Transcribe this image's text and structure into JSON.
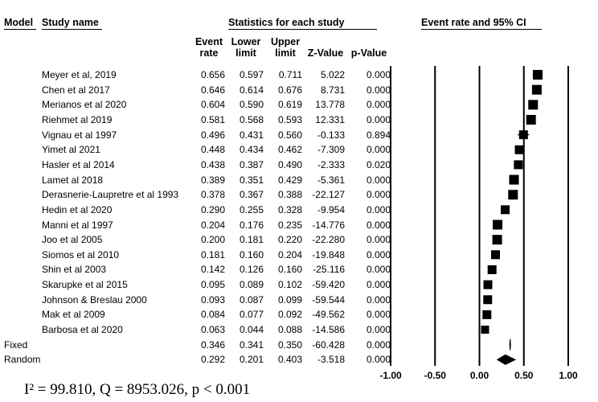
{
  "headers": {
    "model": "Model",
    "study_name": "Study name",
    "statistics": "Statistics for each study",
    "event_rate_ci": "Event rate and 95% CI"
  },
  "columns": {
    "event_rate": [
      "Event",
      "rate"
    ],
    "lower_limit": [
      "Lower",
      "limit"
    ],
    "upper_limit": [
      "Upper",
      "limit"
    ],
    "z_value": "Z-Value",
    "p_value": "p-Value"
  },
  "rows": [
    {
      "model": "",
      "name": "Meyer et al, 2019",
      "rate": "0.656",
      "lower": "0.597",
      "upper": "0.711",
      "z": "5.022",
      "p": "0.000"
    },
    {
      "model": "",
      "name": "Chen et al 2017",
      "rate": "0.646",
      "lower": "0.614",
      "upper": "0.676",
      "z": "8.731",
      "p": "0.000"
    },
    {
      "model": "",
      "name": "Merianos et al 2020",
      "rate": "0.604",
      "lower": "0.590",
      "upper": "0.619",
      "z": "13.778",
      "p": "0.000"
    },
    {
      "model": "",
      "name": "Riehmet al 2019",
      "rate": "0.581",
      "lower": "0.568",
      "upper": "0.593",
      "z": "12.331",
      "p": "0.000"
    },
    {
      "model": "",
      "name": "Vignau et al 1997",
      "rate": "0.496",
      "lower": "0.431",
      "upper": "0.560",
      "z": "-0.133",
      "p": "0.894"
    },
    {
      "model": "",
      "name": "Yimet al 2021",
      "rate": "0.448",
      "lower": "0.434",
      "upper": "0.462",
      "z": "-7.309",
      "p": "0.000"
    },
    {
      "model": "",
      "name": "Hasler et al 2014",
      "rate": "0.438",
      "lower": "0.387",
      "upper": "0.490",
      "z": "-2.333",
      "p": "0.020"
    },
    {
      "model": "",
      "name": "Lamet al 2018",
      "rate": "0.389",
      "lower": "0.351",
      "upper": "0.429",
      "z": "-5.361",
      "p": "0.000"
    },
    {
      "model": "",
      "name": "Derasnerie-Laupretre et al 1993",
      "rate": "0.378",
      "lower": "0.367",
      "upper": "0.388",
      "z": "-22.127",
      "p": "0.000"
    },
    {
      "model": "",
      "name": "Hedin et al 2020",
      "rate": "0.290",
      "lower": "0.255",
      "upper": "0.328",
      "z": "-9.954",
      "p": "0.000"
    },
    {
      "model": "",
      "name": "Manni et al 1997",
      "rate": "0.204",
      "lower": "0.176",
      "upper": "0.235",
      "z": "-14.776",
      "p": "0.000"
    },
    {
      "model": "",
      "name": "Joo et al 2005",
      "rate": "0.200",
      "lower": "0.181",
      "upper": "0.220",
      "z": "-22.280",
      "p": "0.000"
    },
    {
      "model": "",
      "name": "Siomos et al 2010",
      "rate": "0.181",
      "lower": "0.160",
      "upper": "0.204",
      "z": "-19.848",
      "p": "0.000"
    },
    {
      "model": "",
      "name": "Shin et al 2003",
      "rate": "0.142",
      "lower": "0.126",
      "upper": "0.160",
      "z": "-25.116",
      "p": "0.000"
    },
    {
      "model": "",
      "name": "Skarupke et al 2015",
      "rate": "0.095",
      "lower": "0.089",
      "upper": "0.102",
      "z": "-59.420",
      "p": "0.000"
    },
    {
      "model": "",
      "name": "Johnson & Breslau 2000",
      "rate": "0.093",
      "lower": "0.087",
      "upper": "0.099",
      "z": "-59.544",
      "p": "0.000"
    },
    {
      "model": "",
      "name": "Mak et al 2009",
      "rate": "0.084",
      "lower": "0.077",
      "upper": "0.092",
      "z": "-49.562",
      "p": "0.000"
    },
    {
      "model": "",
      "name": "Barbosa et al 2020",
      "rate": "0.063",
      "lower": "0.044",
      "upper": "0.088",
      "z": "-14.586",
      "p": "0.000"
    },
    {
      "model": "Fixed",
      "name": "",
      "rate": "0.346",
      "lower": "0.341",
      "upper": "0.350",
      "z": "-60.428",
      "p": "0.000"
    },
    {
      "model": "Random",
      "name": "",
      "rate": "0.292",
      "lower": "0.201",
      "upper": "0.403",
      "z": "-3.518",
      "p": "0.000"
    }
  ],
  "footnote": "I² = 99.810, Q = 8953.026, p < 0.001",
  "chart_data": {
    "type": "forest",
    "xlim": [
      -1.0,
      1.0
    ],
    "x_ticks": [
      "-1.00",
      "-0.50",
      "0.00",
      "0.50",
      "1.00"
    ],
    "x_tick_values": [
      -1.0,
      -0.5,
      0.0,
      0.5,
      1.0
    ],
    "reference_lines": [
      -1.0,
      -0.5,
      0.0,
      0.5,
      1.0
    ],
    "studies": [
      {
        "name": "Meyer et al, 2019",
        "rate": 0.656,
        "lower": 0.597,
        "upper": 0.711
      },
      {
        "name": "Chen et al 2017",
        "rate": 0.646,
        "lower": 0.614,
        "upper": 0.676
      },
      {
        "name": "Merianos et al 2020",
        "rate": 0.604,
        "lower": 0.59,
        "upper": 0.619
      },
      {
        "name": "Riehmet al 2019",
        "rate": 0.581,
        "lower": 0.568,
        "upper": 0.593
      },
      {
        "name": "Vignau et al 1997",
        "rate": 0.496,
        "lower": 0.431,
        "upper": 0.56
      },
      {
        "name": "Yimet al 2021",
        "rate": 0.448,
        "lower": 0.434,
        "upper": 0.462
      },
      {
        "name": "Hasler et al 2014",
        "rate": 0.438,
        "lower": 0.387,
        "upper": 0.49
      },
      {
        "name": "Lamet al 2018",
        "rate": 0.389,
        "lower": 0.351,
        "upper": 0.429
      },
      {
        "name": "Derasnerie-Laupretre et al 1993",
        "rate": 0.378,
        "lower": 0.367,
        "upper": 0.388
      },
      {
        "name": "Hedin et al 2020",
        "rate": 0.29,
        "lower": 0.255,
        "upper": 0.328
      },
      {
        "name": "Manni et al 1997",
        "rate": 0.204,
        "lower": 0.176,
        "upper": 0.235
      },
      {
        "name": "Joo et al 2005",
        "rate": 0.2,
        "lower": 0.181,
        "upper": 0.22
      },
      {
        "name": "Siomos et al 2010",
        "rate": 0.181,
        "lower": 0.16,
        "upper": 0.204
      },
      {
        "name": "Shin et al 2003",
        "rate": 0.142,
        "lower": 0.126,
        "upper": 0.16
      },
      {
        "name": "Skarupke et al 2015",
        "rate": 0.095,
        "lower": 0.089,
        "upper": 0.102
      },
      {
        "name": "Johnson & Breslau 2000",
        "rate": 0.093,
        "lower": 0.087,
        "upper": 0.099
      },
      {
        "name": "Mak et al 2009",
        "rate": 0.084,
        "lower": 0.077,
        "upper": 0.092
      },
      {
        "name": "Barbosa et al 2020",
        "rate": 0.063,
        "lower": 0.044,
        "upper": 0.088
      }
    ],
    "pooled": [
      {
        "model": "Fixed",
        "rate": 0.346,
        "lower": 0.341,
        "upper": 0.35
      },
      {
        "model": "Random",
        "rate": 0.292,
        "lower": 0.201,
        "upper": 0.403
      }
    ]
  }
}
